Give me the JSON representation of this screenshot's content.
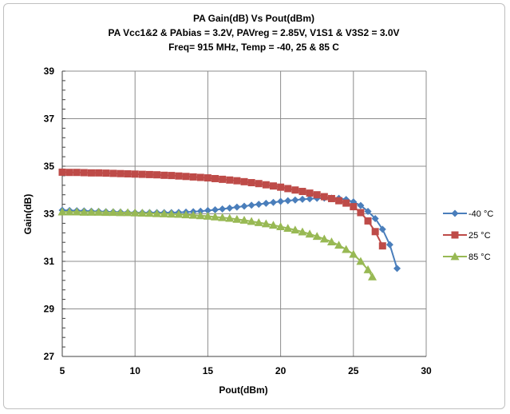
{
  "chart_data": {
    "type": "line",
    "title_lines": [
      "PA Gain(dB) Vs Pout(dBm)",
      "PA Vcc1&2 & PAbias  = 3.2V, PAVreg = 2.85V, V1S1 & V3S2 = 3.0V",
      "Freq= 915 MHz, Temp = -40, 25 & 85 C"
    ],
    "xlabel": "Pout(dBm)",
    "ylabel": "Gain(dB)",
    "xlim": [
      5,
      30
    ],
    "ylim": [
      27,
      39
    ],
    "xticks": [
      5,
      10,
      15,
      20,
      25,
      30
    ],
    "yticks": [
      27,
      29,
      31,
      33,
      35,
      37,
      39
    ],
    "grid": true,
    "legend_position": "right",
    "series": [
      {
        "name": "-40 °C",
        "color": "#4a7ebb",
        "marker": "diamond",
        "x": [
          5,
          5.5,
          6,
          6.5,
          7,
          7.5,
          8,
          8.5,
          9,
          9.5,
          10,
          10.5,
          11,
          11.5,
          12,
          12.5,
          13,
          13.5,
          14,
          14.5,
          15,
          15.5,
          16,
          16.5,
          17,
          17.5,
          18,
          18.5,
          19,
          19.5,
          20,
          20.5,
          21,
          21.5,
          22,
          22.5,
          23,
          23.5,
          24,
          24.5,
          25,
          25.5,
          26,
          26.5,
          27,
          27.5,
          28
        ],
        "y": [
          33.15,
          33.14,
          33.13,
          33.12,
          33.11,
          33.1,
          33.09,
          33.08,
          33.07,
          33.06,
          33.05,
          33.05,
          33.05,
          33.05,
          33.05,
          33.05,
          33.06,
          33.07,
          33.09,
          33.11,
          33.14,
          33.17,
          33.2,
          33.24,
          33.28,
          33.32,
          33.36,
          33.4,
          33.44,
          33.48,
          33.52,
          33.55,
          33.58,
          33.61,
          33.63,
          33.65,
          33.66,
          33.66,
          33.65,
          33.6,
          33.5,
          33.35,
          33.1,
          32.8,
          32.35,
          31.7,
          30.7
        ]
      },
      {
        "name": "25 °C",
        "color": "#be4b48",
        "marker": "square",
        "x": [
          5,
          5.5,
          6,
          6.5,
          7,
          7.5,
          8,
          8.5,
          9,
          9.5,
          10,
          10.5,
          11,
          11.5,
          12,
          12.5,
          13,
          13.5,
          14,
          14.5,
          15,
          15.5,
          16,
          16.5,
          17,
          17.5,
          18,
          18.5,
          19,
          19.5,
          20,
          20.5,
          21,
          21.5,
          22,
          22.5,
          23,
          23.5,
          24,
          24.5,
          25,
          25.5,
          26,
          26.5,
          27
        ],
        "y": [
          34.75,
          34.74,
          34.74,
          34.73,
          34.72,
          34.72,
          34.71,
          34.7,
          34.69,
          34.68,
          34.67,
          34.66,
          34.65,
          34.64,
          34.62,
          34.61,
          34.59,
          34.57,
          34.55,
          34.53,
          34.51,
          34.48,
          34.45,
          34.42,
          34.39,
          34.35,
          34.31,
          34.27,
          34.22,
          34.17,
          34.12,
          34.06,
          34.0,
          33.94,
          33.87,
          33.8,
          33.72,
          33.64,
          33.55,
          33.45,
          33.3,
          33.05,
          32.7,
          32.25,
          31.65
        ]
      },
      {
        "name": "85 °C",
        "color": "#98b954",
        "marker": "triangle",
        "x": [
          5,
          5.5,
          6,
          6.5,
          7,
          7.5,
          8,
          8.5,
          9,
          9.5,
          10,
          10.5,
          11,
          11.5,
          12,
          12.5,
          13,
          13.5,
          14,
          14.5,
          15,
          15.5,
          16,
          16.5,
          17,
          17.5,
          18,
          18.5,
          19,
          19.5,
          20,
          20.5,
          21,
          21.5,
          22,
          22.5,
          23,
          23.5,
          24,
          24.5,
          25,
          25.5,
          26,
          26.3
        ],
        "y": [
          33.08,
          33.08,
          33.08,
          33.07,
          33.07,
          33.07,
          33.06,
          33.06,
          33.05,
          33.05,
          33.04,
          33.03,
          33.02,
          33.01,
          33.0,
          32.99,
          32.98,
          32.96,
          32.94,
          32.92,
          32.9,
          32.87,
          32.84,
          32.81,
          32.77,
          32.73,
          32.68,
          32.63,
          32.58,
          32.52,
          32.46,
          32.39,
          32.32,
          32.24,
          32.15,
          32.05,
          31.94,
          31.82,
          31.68,
          31.5,
          31.3,
          31.0,
          30.65,
          30.35
        ]
      }
    ]
  }
}
